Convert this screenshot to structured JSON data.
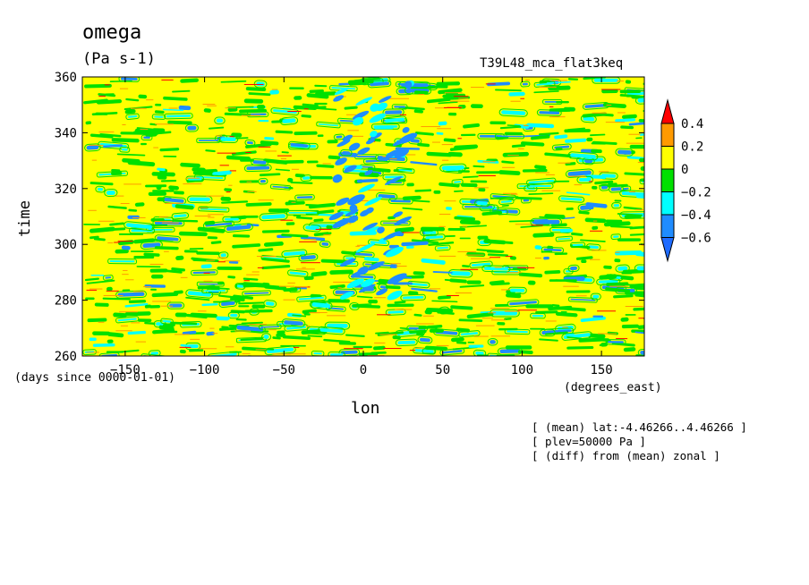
{
  "figure": {
    "title": "omega",
    "units": "(Pa s-1)",
    "run": "T39L48_mca_flat3keq",
    "time_unit": "(days since 0000-01-01)",
    "lon_unit": "(degrees_east)",
    "annotations": [
      "[ (mean) lat:-4.46266..4.46266 ]",
      "[ plev=50000 Pa ]",
      "[ (diff) from (mean) zonal ]"
    ]
  },
  "chart_data": {
    "type": "heatmap",
    "title": "omega",
    "xlabel": "lon",
    "ylabel": "time",
    "xlim": [
      -177,
      177
    ],
    "ylim": [
      260,
      360
    ],
    "xticks": [
      -150,
      -100,
      -50,
      0,
      50,
      100,
      150
    ],
    "yticks": [
      260,
      280,
      300,
      320,
      340,
      360
    ],
    "colorbar": {
      "levels": [
        -0.6,
        -0.4,
        -0.2,
        0,
        0.2,
        0.4
      ],
      "level_labels": [
        "-0.6",
        "-0.4",
        "-0.2",
        "0",
        "0.2",
        "0.4"
      ],
      "colors": [
        "#1f6bff",
        "#1f8cff",
        "#00ffff",
        "#00e000",
        "#ffff00",
        "#ff9a00",
        "#ff0000"
      ],
      "extend": "both"
    },
    "background_color": "#ffff00",
    "features": [
      {
        "name": "convective band",
        "lon_range": [
          -20,
          30
        ],
        "time_range": [
          280,
          360
        ],
        "sign": "negative"
      }
    ]
  }
}
